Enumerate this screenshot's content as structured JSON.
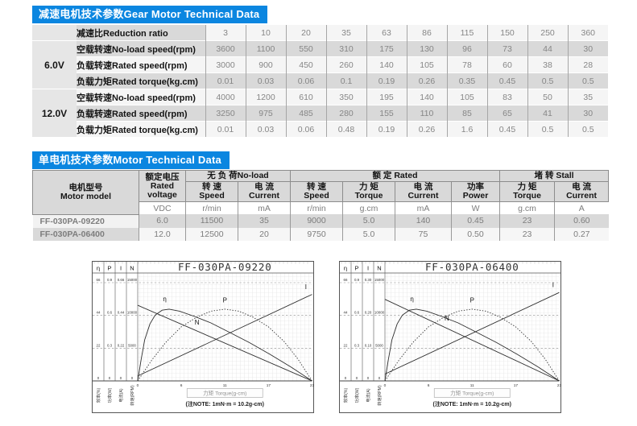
{
  "colors": {
    "title_bar_bg": "#0b86e0",
    "row_gray": "#d9d9d9",
    "curve": "#2e2e2e"
  },
  "gear_table": {
    "title": "减速电机技术参数Gear Motor Technical Data",
    "ratio_label": "减速比Reduction ratio",
    "ratios": [
      "3",
      "10",
      "20",
      "35",
      "63",
      "86",
      "115",
      "150",
      "250",
      "360"
    ],
    "groups": [
      {
        "voltage": "6.0V",
        "rows": [
          {
            "label": "空载转速No-load speed(rpm)",
            "values": [
              "3600",
              "1100",
              "550",
              "310",
              "175",
              "130",
              "96",
              "73",
              "44",
              "30"
            ]
          },
          {
            "label": "负载转速Rated speed(rpm)",
            "values": [
              "3000",
              "900",
              "450",
              "260",
              "140",
              "105",
              "78",
              "60",
              "38",
              "28"
            ]
          },
          {
            "label": "负载力矩Rated torque(kg.cm)",
            "values": [
              "0.01",
              "0.03",
              "0.06",
              "0.1",
              "0.19",
              "0.26",
              "0.35",
              "0.45",
              "0.5",
              "0.5"
            ]
          }
        ]
      },
      {
        "voltage": "12.0V",
        "rows": [
          {
            "label": "空载转速No-load speed(rpm)",
            "values": [
              "4000",
              "1200",
              "610",
              "350",
              "195",
              "140",
              "105",
              "83",
              "50",
              "35"
            ]
          },
          {
            "label": "负载转速Rated speed(rpm)",
            "values": [
              "3250",
              "975",
              "485",
              "280",
              "155",
              "110",
              "85",
              "65",
              "41",
              "30"
            ]
          },
          {
            "label": "负载力矩Rated torque(kg.cm)",
            "values": [
              "0.01",
              "0.03",
              "0.06",
              "0.48",
              "0.19",
              "0.26",
              "1.6",
              "0.45",
              "0.5",
              "0.5"
            ]
          }
        ]
      }
    ]
  },
  "motor_table": {
    "title": "单电机技术参数Motor Technical Data",
    "model_header": [
      "电机型号",
      "Motor model"
    ],
    "voltage_header": [
      "额定电压",
      "Rated",
      "voltage"
    ],
    "group_headers": [
      "无 负 荷No-load",
      "额 定 Rated",
      "堵 转 Stall"
    ],
    "group_spans": [
      2,
      4,
      2
    ],
    "sub_headers": [
      [
        "转 速",
        "Speed"
      ],
      [
        "电 流",
        "Current"
      ],
      [
        "转 速",
        "Speed"
      ],
      [
        "力 矩",
        "Torque"
      ],
      [
        "电 流",
        "Current"
      ],
      [
        "功率",
        "Power"
      ],
      [
        "力 矩",
        "Torque"
      ],
      [
        "电 流",
        "Current"
      ]
    ],
    "units": [
      "VDC",
      "r/min",
      "mA",
      "r/min",
      "g.cm",
      "mA",
      "W",
      "g.cm",
      "A"
    ],
    "rows": [
      {
        "model": "FF-030PA-09220",
        "values": [
          "6.0",
          "11500",
          "35",
          "9000",
          "5.0",
          "140",
          "0.45",
          "23",
          "0.60"
        ]
      },
      {
        "model": "FF-030PA-06400",
        "values": [
          "12.0",
          "12500",
          "20",
          "9750",
          "5.0",
          "75",
          "0.50",
          "23",
          "0.27"
        ]
      }
    ]
  },
  "chart_data": [
    {
      "type": "line",
      "title": "FF-030PA-09220",
      "xlabel": "力矩 Torque(g-cm)",
      "note": "(注NOTE: 1mN·m = 10.2g-cm)",
      "xlim": [
        0,
        23
      ],
      "x_ticks": [
        "0",
        "6",
        "11",
        "17",
        "23"
      ],
      "grid": true,
      "axes": [
        {
          "symbol": "η",
          "unit": "效率(%)",
          "ticks": [
            "66",
            "44",
            "22",
            "0"
          ]
        },
        {
          "symbol": "P",
          "unit": "功率(W)",
          "ticks": [
            "0.9",
            "0.6",
            "0.3",
            "0"
          ]
        },
        {
          "symbol": "I",
          "unit": "电流(A)",
          "ticks": [
            "0.66",
            "0.44",
            "0.22",
            "0"
          ]
        },
        {
          "symbol": "N",
          "unit": "转速(RPM)",
          "ticks": [
            "15000",
            "10000",
            "5000",
            "0"
          ]
        }
      ],
      "series": [
        {
          "name": "η",
          "style": "solid",
          "label_pos": {
            "x": 0.155,
            "y": 0.81
          },
          "points": [
            [
              0,
              0
            ],
            [
              0.02,
              0.22
            ],
            [
              0.04,
              0.42
            ],
            [
              0.07,
              0.58
            ],
            [
              0.1,
              0.67
            ],
            [
              0.14,
              0.72
            ],
            [
              0.18,
              0.73
            ],
            [
              0.24,
              0.71
            ],
            [
              0.32,
              0.66
            ],
            [
              0.42,
              0.59
            ],
            [
              0.52,
              0.5
            ],
            [
              0.64,
              0.39
            ],
            [
              0.76,
              0.27
            ],
            [
              0.88,
              0.14
            ],
            [
              1,
              0
            ]
          ]
        },
        {
          "name": "P",
          "style": "dotted",
          "label_pos": {
            "x": 0.5,
            "y": 0.8
          },
          "points": [
            [
              0,
              0
            ],
            [
              0.08,
              0.21
            ],
            [
              0.16,
              0.39
            ],
            [
              0.25,
              0.55
            ],
            [
              0.34,
              0.65
            ],
            [
              0.42,
              0.71
            ],
            [
              0.5,
              0.73
            ],
            [
              0.58,
              0.71
            ],
            [
              0.66,
              0.65
            ],
            [
              0.75,
              0.55
            ],
            [
              0.84,
              0.4
            ],
            [
              0.92,
              0.22
            ],
            [
              1,
              0
            ]
          ]
        },
        {
          "name": "N",
          "style": "solid",
          "label_pos": {
            "x": 0.34,
            "y": 0.575
          },
          "points": [
            [
              0,
              0.77
            ],
            [
              1,
              0
            ]
          ]
        },
        {
          "name": "I",
          "style": "solid",
          "label_pos": {
            "x": 0.965,
            "y": 0.935
          },
          "points": [
            [
              0,
              0.05
            ],
            [
              1,
              0.88
            ]
          ]
        }
      ]
    },
    {
      "type": "line",
      "title": "FF-030PA-06400",
      "xlabel": "力矩 Torque(g-cm)",
      "note": "(注NOTE: 1mN·m = 10.2g-cm)",
      "xlim": [
        0,
        23
      ],
      "x_ticks": [
        "0",
        "6",
        "11",
        "17",
        "23"
      ],
      "grid": true,
      "axes": [
        {
          "symbol": "η",
          "unit": "效率(%)",
          "ticks": [
            "66",
            "44",
            "22",
            "0"
          ]
        },
        {
          "symbol": "P",
          "unit": "功率(W)",
          "ticks": [
            "0.9",
            "0.6",
            "0.3",
            "0"
          ]
        },
        {
          "symbol": "I",
          "unit": "电流(A)",
          "ticks": [
            "0.30",
            "0.20",
            "0.10",
            "0"
          ]
        },
        {
          "symbol": "N",
          "unit": "转速(RPM)",
          "ticks": [
            "15000",
            "10000",
            "5000",
            "0"
          ]
        }
      ],
      "series": [
        {
          "name": "η",
          "style": "solid",
          "label_pos": {
            "x": 0.155,
            "y": 0.81
          },
          "points": [
            [
              0,
              0
            ],
            [
              0.02,
              0.22
            ],
            [
              0.04,
              0.42
            ],
            [
              0.07,
              0.58
            ],
            [
              0.1,
              0.67
            ],
            [
              0.14,
              0.72
            ],
            [
              0.18,
              0.73
            ],
            [
              0.24,
              0.71
            ],
            [
              0.32,
              0.66
            ],
            [
              0.42,
              0.59
            ],
            [
              0.52,
              0.5
            ],
            [
              0.64,
              0.39
            ],
            [
              0.76,
              0.27
            ],
            [
              0.88,
              0.14
            ],
            [
              1,
              0
            ]
          ]
        },
        {
          "name": "P",
          "style": "dotted",
          "label_pos": {
            "x": 0.5,
            "y": 0.8
          },
          "points": [
            [
              0,
              0
            ],
            [
              0.08,
              0.21
            ],
            [
              0.16,
              0.39
            ],
            [
              0.25,
              0.55
            ],
            [
              0.34,
              0.65
            ],
            [
              0.42,
              0.71
            ],
            [
              0.5,
              0.73
            ],
            [
              0.58,
              0.71
            ],
            [
              0.66,
              0.65
            ],
            [
              0.75,
              0.55
            ],
            [
              0.84,
              0.4
            ],
            [
              0.92,
              0.22
            ],
            [
              1,
              0
            ]
          ]
        },
        {
          "name": "N",
          "style": "solid",
          "label_pos": {
            "x": 0.355,
            "y": 0.615
          },
          "points": [
            [
              0,
              0.83
            ],
            [
              1,
              0
            ]
          ]
        },
        {
          "name": "I",
          "style": "solid",
          "label_pos": {
            "x": 0.965,
            "y": 0.955
          },
          "points": [
            [
              0,
              0.07
            ],
            [
              1,
              0.9
            ]
          ]
        }
      ]
    }
  ]
}
